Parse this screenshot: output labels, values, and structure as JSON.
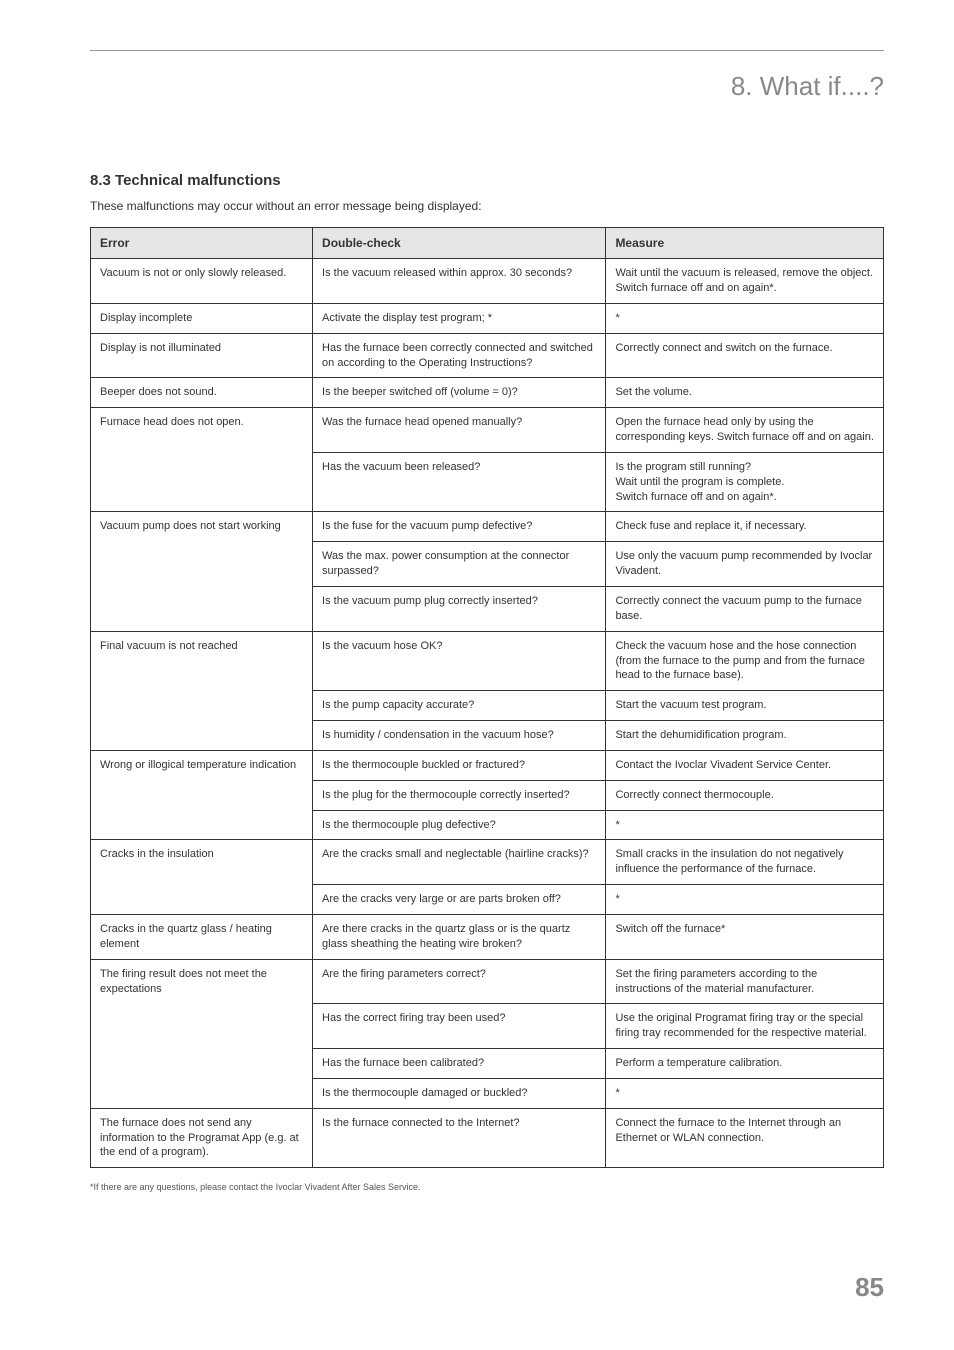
{
  "chapter_title": "8. What if....?",
  "section_number_title": "8.3   Technical malfunctions",
  "section_intro": "These malfunctions may occur without an error message being displayed:",
  "headers": {
    "error": "Error",
    "check": "Double-check",
    "measure": "Measure"
  },
  "rows": [
    {
      "span": 1,
      "error": "Vacuum is not or only slowly released.",
      "checks": [
        "Is the vacuum released within approx. 30 seconds?"
      ],
      "measures": [
        "Wait until the vacuum is released, remove the object. Switch furnace off and on again*."
      ]
    },
    {
      "span": 1,
      "error": "Display incomplete",
      "checks": [
        "Activate the display test program; *"
      ],
      "measures": [
        "*"
      ]
    },
    {
      "span": 1,
      "error": "Display is not illuminated",
      "checks": [
        "Has the furnace been correctly connected and switched on according to the Operating Instructions?"
      ],
      "measures": [
        "Correctly connect and switch on the furnace."
      ]
    },
    {
      "span": 1,
      "error": "Beeper does not sound.",
      "checks": [
        "Is the beeper switched off (volume = 0)?"
      ],
      "measures": [
        "Set the volume."
      ]
    },
    {
      "span": 2,
      "error": "Furnace head does not open.",
      "checks": [
        "Was the furnace head opened manually?",
        "Has the vacuum been released?"
      ],
      "measures": [
        "Open the furnace head only by using the corresponding keys. Switch furnace off and on again.",
        "Is the program still running?\nWait until the program is complete.\nSwitch furnace off and on again*."
      ]
    },
    {
      "span": 3,
      "error": "Vacuum pump does not start working",
      "checks": [
        "Is the fuse for the vacuum pump defective?",
        "Was the max. power consumption at the connector surpassed?",
        "Is the vacuum pump plug correctly inserted?"
      ],
      "measures": [
        "Check fuse and replace it, if necessary.",
        "Use only the vacuum pump recommended by Ivoclar Vivadent.",
        "Correctly connect the vacuum pump to the furnace base."
      ]
    },
    {
      "span": 3,
      "error": "Final vacuum is not reached",
      "checks": [
        "Is the vacuum hose OK?",
        "Is the pump capacity accurate?",
        "Is humidity / condensation in the vacuum hose?"
      ],
      "measures": [
        "Check the vacuum hose and the hose connection (from the furnace to the pump and from the furnace head to the furnace base).",
        "Start the vacuum test program.",
        "Start the dehumidification program."
      ]
    },
    {
      "span": 3,
      "error": "Wrong or illogical temperature indication",
      "checks": [
        "Is the thermocouple buckled or fractured?",
        "Is the plug for the thermocouple correctly inserted?",
        "Is the thermocouple plug defective?"
      ],
      "measures": [
        "Contact the Ivoclar Vivadent Service Center.",
        "Correctly connect thermocouple.",
        "*"
      ]
    },
    {
      "span": 2,
      "error": "Cracks in the insulation",
      "checks": [
        "Are the cracks small and neglectable (hairline cracks)?",
        "Are the cracks very large or are parts broken off?"
      ],
      "measures": [
        "Small cracks in the insulation do not negatively influence the performance of the furnace.",
        "*"
      ]
    },
    {
      "span": 1,
      "error": "Cracks in the quartz glass / heating element",
      "checks": [
        "Are there cracks in the quartz glass or is the quartz glass sheathing the heating wire broken?"
      ],
      "measures": [
        "Switch off the furnace*"
      ]
    },
    {
      "span": 4,
      "error": "The firing result does not meet the expectations",
      "checks": [
        "Are the firing parameters correct?",
        "Has the correct firing tray been used?",
        "Has the furnace been calibrated?",
        "Is the thermocouple damaged or buckled?"
      ],
      "measures": [
        "Set the firing parameters according to the instructions of the material manufacturer.",
        "Use the original Programat firing tray or the special firing tray recommended for the respective material.",
        "Perform a temperature calibration.",
        "*"
      ]
    },
    {
      "span": 1,
      "error": "The furnace does not send any information to the Programat App (e.g. at the end of a program).",
      "checks": [
        "Is the furnace connected to the Internet?"
      ],
      "measures": [
        "Connect the furnace to the Internet through an Ethernet or WLAN connection."
      ]
    }
  ],
  "footnote": "*If there are any questions, please contact the Ivoclar Vivadent After Sales Service.",
  "page_number": "85"
}
